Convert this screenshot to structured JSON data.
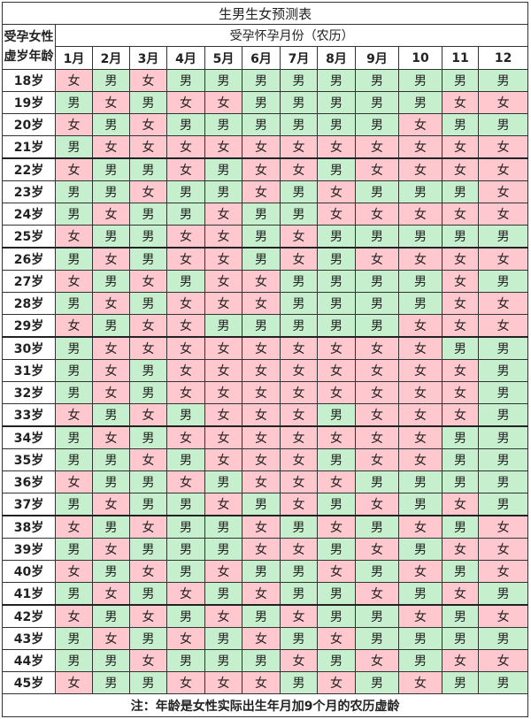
{
  "title": "生男生女预测表",
  "age_header": [
    "受孕女性",
    "虚岁年龄"
  ],
  "month_header": "受孕怀孕月份（农历）",
  "months": [
    "1月",
    "2月",
    "3月",
    "4月",
    "5月",
    "6月",
    "7月",
    "8月",
    "9月",
    "10",
    "11",
    "12"
  ],
  "colors": {
    "male": "#c6efce",
    "female": "#ffc7ce"
  },
  "rows": [
    {
      "age": "18岁",
      "cells": [
        "女",
        "男",
        "女",
        "男",
        "男",
        "男",
        "男",
        "男",
        "男",
        "男",
        "男",
        "男"
      ]
    },
    {
      "age": "19岁",
      "cells": [
        "男",
        "女",
        "男",
        "女",
        "女",
        "男",
        "男",
        "男",
        "男",
        "男",
        "女",
        "女"
      ]
    },
    {
      "age": "20岁",
      "cells": [
        "女",
        "男",
        "女",
        "男",
        "男",
        "男",
        "男",
        "男",
        "男",
        "女",
        "男",
        "男"
      ]
    },
    {
      "age": "21岁",
      "cells": [
        "男",
        "女",
        "女",
        "女",
        "女",
        "女",
        "女",
        "女",
        "女",
        "女",
        "女",
        "女"
      ]
    },
    {
      "age": "22岁",
      "cells": [
        "女",
        "男",
        "男",
        "女",
        "男",
        "女",
        "女",
        "男",
        "女",
        "女",
        "女",
        "女"
      ]
    },
    {
      "age": "23岁",
      "cells": [
        "男",
        "男",
        "女",
        "男",
        "男",
        "女",
        "男",
        "女",
        "男",
        "男",
        "男",
        "女"
      ]
    },
    {
      "age": "24岁",
      "cells": [
        "男",
        "女",
        "男",
        "男",
        "女",
        "男",
        "男",
        "女",
        "女",
        "女",
        "女",
        "女"
      ]
    },
    {
      "age": "25岁",
      "cells": [
        "女",
        "男",
        "男",
        "女",
        "女",
        "男",
        "女",
        "男",
        "男",
        "男",
        "男",
        "男"
      ]
    },
    {
      "age": "26岁",
      "cells": [
        "男",
        "女",
        "男",
        "女",
        "女",
        "男",
        "女",
        "男",
        "女",
        "女",
        "女",
        "女"
      ]
    },
    {
      "age": "27岁",
      "cells": [
        "女",
        "男",
        "女",
        "男",
        "女",
        "女",
        "男",
        "男",
        "男",
        "男",
        "女",
        "男"
      ]
    },
    {
      "age": "28岁",
      "cells": [
        "男",
        "女",
        "男",
        "女",
        "女",
        "女",
        "男",
        "男",
        "男",
        "男",
        "女",
        "女"
      ]
    },
    {
      "age": "29岁",
      "cells": [
        "女",
        "男",
        "女",
        "女",
        "男",
        "男",
        "男",
        "男",
        "男",
        "女",
        "女",
        "女"
      ]
    },
    {
      "age": "30岁",
      "cells": [
        "男",
        "女",
        "女",
        "女",
        "女",
        "女",
        "女",
        "女",
        "女",
        "女",
        "男",
        "男"
      ]
    },
    {
      "age": "31岁",
      "cells": [
        "男",
        "女",
        "男",
        "女",
        "女",
        "女",
        "女",
        "女",
        "女",
        "女",
        "女",
        "男"
      ]
    },
    {
      "age": "32岁",
      "cells": [
        "男",
        "女",
        "男",
        "女",
        "女",
        "女",
        "女",
        "女",
        "女",
        "女",
        "女",
        "男"
      ]
    },
    {
      "age": "33岁",
      "cells": [
        "女",
        "男",
        "女",
        "男",
        "女",
        "女",
        "女",
        "男",
        "女",
        "女",
        "女",
        "男"
      ]
    },
    {
      "age": "34岁",
      "cells": [
        "男",
        "女",
        "男",
        "女",
        "女",
        "女",
        "女",
        "女",
        "女",
        "女",
        "男",
        "男"
      ]
    },
    {
      "age": "35岁",
      "cells": [
        "男",
        "男",
        "女",
        "男",
        "女",
        "女",
        "女",
        "男",
        "女",
        "女",
        "男",
        "男"
      ]
    },
    {
      "age": "36岁",
      "cells": [
        "女",
        "男",
        "男",
        "女",
        "男",
        "女",
        "女",
        "女",
        "男",
        "男",
        "男",
        "男"
      ]
    },
    {
      "age": "37岁",
      "cells": [
        "男",
        "女",
        "男",
        "男",
        "女",
        "男",
        "女",
        "男",
        "女",
        "男",
        "女",
        "男"
      ]
    },
    {
      "age": "38岁",
      "cells": [
        "女",
        "男",
        "女",
        "男",
        "男",
        "女",
        "男",
        "女",
        "男",
        "女",
        "男",
        "女"
      ]
    },
    {
      "age": "39岁",
      "cells": [
        "男",
        "女",
        "男",
        "男",
        "男",
        "女",
        "女",
        "男",
        "女",
        "男",
        "女",
        "女"
      ]
    },
    {
      "age": "40岁",
      "cells": [
        "女",
        "男",
        "女",
        "男",
        "女",
        "男",
        "男",
        "女",
        "男",
        "女",
        "男",
        "女"
      ]
    },
    {
      "age": "41岁",
      "cells": [
        "男",
        "女",
        "男",
        "女",
        "男",
        "女",
        "男",
        "男",
        "女",
        "男",
        "女",
        "男"
      ]
    },
    {
      "age": "42岁",
      "cells": [
        "女",
        "男",
        "女",
        "男",
        "女",
        "男",
        "女",
        "男",
        "男",
        "女",
        "男",
        "女"
      ]
    },
    {
      "age": "43岁",
      "cells": [
        "男",
        "女",
        "男",
        "女",
        "男",
        "女",
        "男",
        "女",
        "男",
        "男",
        "男",
        "男"
      ]
    },
    {
      "age": "44岁",
      "cells": [
        "男",
        "男",
        "女",
        "男",
        "男",
        "男",
        "女",
        "男",
        "女",
        "男",
        "女",
        "女"
      ]
    },
    {
      "age": "45岁",
      "cells": [
        "女",
        "男",
        "男",
        "女",
        "女",
        "女",
        "男",
        "女",
        "男",
        "女",
        "男",
        "男"
      ]
    }
  ],
  "footnote": "注：年龄是女性实际出生年月加9个月的农历虚龄"
}
